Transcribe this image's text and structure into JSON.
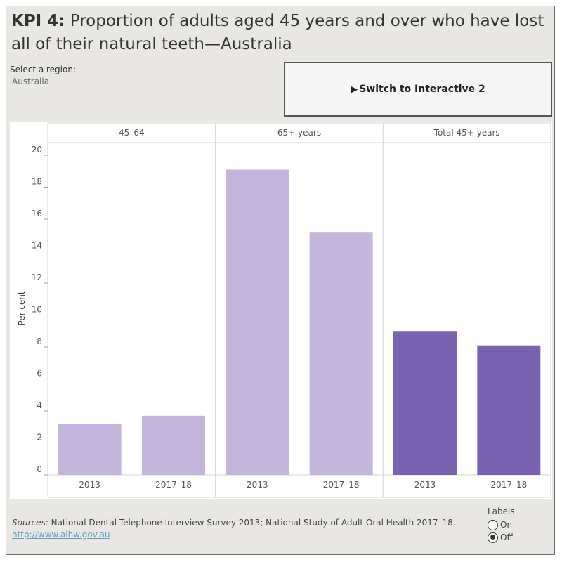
{
  "header": {
    "title_bold": "KPI 4:",
    "title_rest": " Proportion of adults aged 45 years and over who have lost all of their natural teeth—Australia"
  },
  "region": {
    "label": "Select a region:",
    "value": "Australia"
  },
  "switch_button": {
    "label": "Switch to Interactive 2",
    "icon": "play-arrow-icon"
  },
  "footer": {
    "sources_label": "Sources:",
    "sources_text": " National Dental Telephone Interview Survey 2013; National Study of Adult Oral Health 2017–18.",
    "link": "http://www.aihw.gov.au"
  },
  "labels_control": {
    "title": "Labels",
    "options": [
      {
        "label": "On",
        "selected": false
      },
      {
        "label": "Off",
        "selected": true
      }
    ]
  },
  "chart_data": {
    "type": "bar",
    "ylabel": "Per cent",
    "ylim": [
      0,
      20
    ],
    "yticks": [
      0,
      2,
      4,
      6,
      8,
      10,
      12,
      14,
      16,
      18,
      20
    ],
    "grid": false,
    "colors": {
      "light": "#c4b5dc",
      "dark": "#7a62b0"
    },
    "panels": [
      {
        "name": "45–64",
        "categories": [
          "2013",
          "2017–18"
        ],
        "values": [
          3.2,
          3.7
        ],
        "color": "light"
      },
      {
        "name": "65+ years",
        "categories": [
          "2013",
          "2017–18"
        ],
        "values": [
          19.1,
          15.2
        ],
        "color": "light"
      },
      {
        "name": "Total 45+ years",
        "categories": [
          "2013",
          "2017–18"
        ],
        "values": [
          9.0,
          8.1
        ],
        "color": "dark"
      }
    ]
  }
}
